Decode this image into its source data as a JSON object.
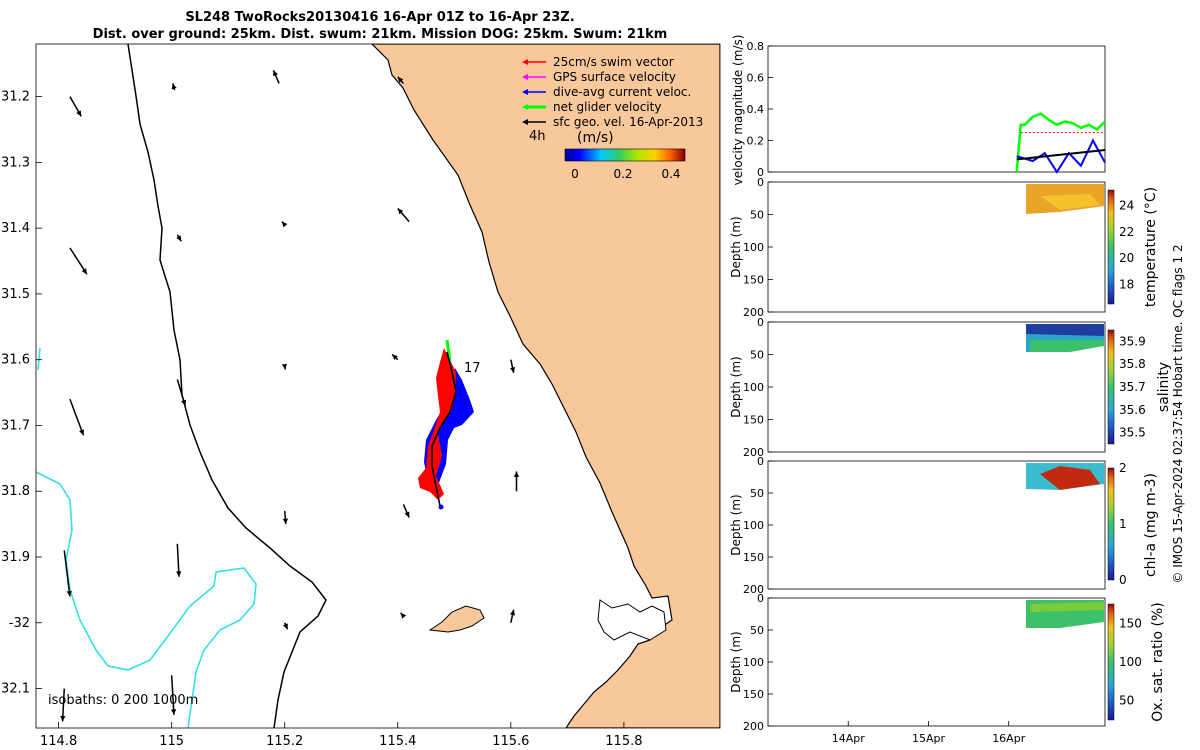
{
  "header": {
    "title_line1": "SL248 TwoRocks20130416 16-Apr 01Z to 16-Apr 23Z.",
    "title_line2": "Dist. over ground: 25km. Dist. swum: 21km. Mission DOG: 25km. Swum: 21km"
  },
  "colors": {
    "land": "#f8c79a",
    "swim_vector": "#ff0000",
    "gps_velocity": "#ff00ff",
    "dive_avg": "#0000ff",
    "net_glider": "#00ff00",
    "sfc_geo": "#000000",
    "isobath_200": "#000000",
    "isobath_1000": "#33e0e6"
  },
  "map": {
    "legend": {
      "items": [
        {
          "label": "25cm/s swim vector",
          "color": "#ff0000"
        },
        {
          "label": "GPS surface velocity",
          "color": "#ff00ff"
        },
        {
          "label": "dive-avg current veloc.",
          "color": "#0000ff"
        },
        {
          "label": "net glider velocity",
          "color": "#00ff00"
        },
        {
          "label": "sfc geo. vel. 16-Apr-2013",
          "color": "#000000"
        }
      ],
      "time_step": "4h",
      "colorbar_title": "(m/s)",
      "colorbar_ticks": [
        "0",
        "0.2",
        "0.4"
      ]
    },
    "isobaths_label": "isobaths: 0   200  1000m",
    "track_label": "17",
    "xlabels": [
      "114.8",
      "115",
      "115.2",
      "115.4",
      "115.6",
      "115.8"
    ],
    "ylabels": [
      "31.2",
      "31.3",
      "31.4",
      "31.5",
      "31.6",
      "31.7",
      "31.8",
      "31.9",
      "-32",
      "32.1"
    ],
    "xlim": [
      114.76,
      115.97
    ],
    "ylim": [
      32.16,
      31.12
    ],
    "geo_vectors": [
      {
        "lon": 114.82,
        "lat": 31.2,
        "dlon": 0.02,
        "dlat": 0.03
      },
      {
        "lon": 115.005,
        "lat": 31.19,
        "dlon": -0.003,
        "dlat": -0.01
      },
      {
        "lon": 115.19,
        "lat": 31.18,
        "dlon": -0.01,
        "dlat": -0.02
      },
      {
        "lon": 115.41,
        "lat": 31.18,
        "dlon": -0.01,
        "dlat": -0.01
      },
      {
        "lon": 114.82,
        "lat": 31.43,
        "dlon": 0.03,
        "dlat": 0.04
      },
      {
        "lon": 115.01,
        "lat": 31.41,
        "dlon": 0.007,
        "dlat": 0.01
      },
      {
        "lon": 115.2,
        "lat": 31.395,
        "dlon": -0.005,
        "dlat": -0.005
      },
      {
        "lon": 115.42,
        "lat": 31.39,
        "dlon": -0.02,
        "dlat": -0.02
      },
      {
        "lon": 114.82,
        "lat": 31.66,
        "dlon": 0.024,
        "dlat": 0.055
      },
      {
        "lon": 115.01,
        "lat": 31.63,
        "dlon": 0.014,
        "dlat": 0.04
      },
      {
        "lon": 115.2,
        "lat": 31.61,
        "dlon": 0.001,
        "dlat": 0.005
      },
      {
        "lon": 115.4,
        "lat": 31.6,
        "dlon": -0.01,
        "dlat": -0.008
      },
      {
        "lon": 115.6,
        "lat": 31.6,
        "dlon": 0.005,
        "dlat": 0.02
      },
      {
        "lon": 114.81,
        "lat": 31.89,
        "dlon": 0.01,
        "dlat": 0.07
      },
      {
        "lon": 115.01,
        "lat": 31.88,
        "dlon": 0.003,
        "dlat": 0.05
      },
      {
        "lon": 115.2,
        "lat": 31.83,
        "dlon": 0.002,
        "dlat": 0.02
      },
      {
        "lon": 115.41,
        "lat": 31.82,
        "dlon": 0.01,
        "dlat": 0.02
      },
      {
        "lon": 115.61,
        "lat": 31.8,
        "dlon": 0.0,
        "dlat": -0.03
      },
      {
        "lon": 114.81,
        "lat": 32.1,
        "dlon": -0.003,
        "dlat": 0.05
      },
      {
        "lon": 115.0,
        "lat": 32.08,
        "dlon": 0.004,
        "dlat": 0.06
      },
      {
        "lon": 115.2,
        "lat": 32.0,
        "dlon": 0.005,
        "dlat": 0.01
      },
      {
        "lon": 115.41,
        "lat": 31.99,
        "dlon": -0.005,
        "dlat": -0.005
      },
      {
        "lon": 115.6,
        "lat": 32.0,
        "dlon": 0.005,
        "dlat": -0.02
      }
    ]
  },
  "panels": {
    "velocity": {
      "ylabel": "velocity magnitude (m/s)",
      "yticks": [
        "0",
        "0.2",
        "0.4",
        "0.6",
        "0.8"
      ]
    },
    "temperature": {
      "ylabel": "Depth (m)",
      "cbar_label": "temperature (°C)",
      "cbar_ticks": [
        "18",
        "20",
        "22",
        "24"
      ]
    },
    "salinity": {
      "ylabel": "Depth (m)",
      "cbar_label": "salinity",
      "cbar_ticks": [
        "35.5",
        "35.6",
        "35.7",
        "35.8",
        "35.9"
      ]
    },
    "chla": {
      "ylabel": "Depth (m)",
      "cbar_label": "chl-a (mg m-3)",
      "cbar_ticks": [
        "0",
        "1",
        "2"
      ]
    },
    "oxygen": {
      "ylabel": "Depth (m)",
      "cbar_label": "Ox. sat. ratio (%)",
      "cbar_ticks": [
        "50",
        "100",
        "150"
      ]
    },
    "depth_ticks": [
      "0",
      "50",
      "100",
      "150",
      "200"
    ],
    "xticks": [
      "14Apr",
      "15Apr",
      "16Apr"
    ],
    "footer": "© IMOS 15-Apr-2024 02:37:54 Hobart time. QC flags 1  2"
  },
  "chart_data": [
    {
      "type": "line",
      "title": "",
      "xlabel": "",
      "ylabel": "velocity magnitude (m/s)",
      "ylim": [
        0,
        0.8
      ],
      "series": [
        {
          "color": "#00ff00",
          "x": [
            16.1,
            16.15,
            16.2,
            16.3,
            16.4,
            16.5,
            16.6,
            16.7,
            16.8,
            16.9,
            17.0,
            17.1,
            17.2
          ],
          "values": [
            0.0,
            0.3,
            0.3,
            0.35,
            0.37,
            0.33,
            0.3,
            0.32,
            0.31,
            0.28,
            0.3,
            0.27,
            0.32
          ]
        },
        {
          "color": "#ff0000",
          "x": [
            16.15,
            17.2
          ],
          "values": [
            0.25,
            0.25
          ]
        },
        {
          "color": "#0000ff",
          "x": [
            16.1,
            16.3,
            16.45,
            16.6,
            16.75,
            16.9,
            17.05,
            17.2
          ],
          "values": [
            0.1,
            0.07,
            0.12,
            0.0,
            0.12,
            0.04,
            0.2,
            0.06
          ]
        },
        {
          "color": "#000000",
          "x": [
            16.1,
            17.2
          ],
          "values": [
            0.08,
            0.14
          ]
        }
      ],
      "xticks": [
        "14Apr",
        "15Apr",
        "16Apr"
      ]
    }
  ]
}
